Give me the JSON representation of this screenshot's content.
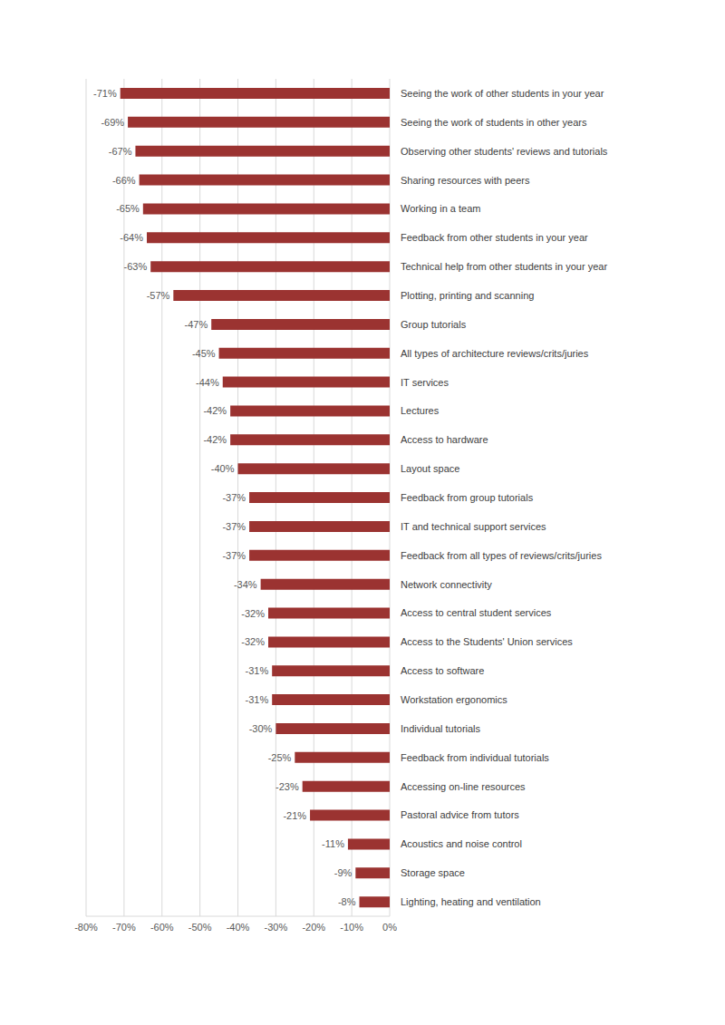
{
  "chart_data": {
    "type": "bar",
    "orientation": "horizontal",
    "categories": [
      "Seeing the work of other students in your year",
      "Seeing the work of students in other years",
      "Observing other students' reviews and tutorials",
      "Sharing resources with peers",
      "Working in a team",
      "Feedback from other students in your year",
      "Technical help from other students in your year",
      "Plotting, printing and scanning",
      "Group tutorials",
      "All types of architecture reviews/crits/juries",
      "IT services",
      "Lectures",
      "Access to hardware",
      "Layout space",
      "Feedback from group tutorials",
      "IT and technical support services",
      "Feedback from all types of reviews/crits/juries",
      "Network connectivity",
      "Access to central student services",
      "Access to the Students' Union services",
      "Access to software",
      "Workstation ergonomics",
      "Individual tutorials",
      "Feedback from individual tutorials",
      "Accessing on-line resources",
      "Pastoral advice from tutors",
      "Acoustics and noise control",
      "Storage space",
      "Lighting, heating and ventilation"
    ],
    "values": [
      -71,
      -69,
      -67,
      -66,
      -65,
      -64,
      -63,
      -57,
      -47,
      -45,
      -44,
      -42,
      -42,
      -40,
      -37,
      -37,
      -37,
      -34,
      -32,
      -32,
      -31,
      -31,
      -30,
      -25,
      -23,
      -21,
      -11,
      -9,
      -8
    ],
    "value_labels": [
      "-71%",
      "-69%",
      "-67%",
      "-66%",
      "-65%",
      "-64%",
      "-63%",
      "-57%",
      "-47%",
      "-45%",
      "-44%",
      "-42%",
      "-42%",
      "-40%",
      "-37%",
      "-37%",
      "-37%",
      "-34%",
      "-32%",
      "-32%",
      "-31%",
      "-31%",
      "-30%",
      "-25%",
      "-23%",
      "-21%",
      "-11%",
      "-9%",
      "-8%"
    ],
    "color": "#9b3331",
    "xlim": [
      -80,
      0
    ],
    "xticks": [
      {
        "value": -80,
        "label": "-80%"
      },
      {
        "value": -70,
        "label": "-70%"
      },
      {
        "value": -60,
        "label": "-60%"
      },
      {
        "value": -50,
        "label": "-50%"
      },
      {
        "value": -40,
        "label": "-40%"
      },
      {
        "value": -30,
        "label": "-30%"
      },
      {
        "value": -20,
        "label": "-20%"
      },
      {
        "value": -10,
        "label": "-10%"
      },
      {
        "value": 0,
        "label": "0%"
      }
    ],
    "grid": true,
    "data_labels": true
  }
}
